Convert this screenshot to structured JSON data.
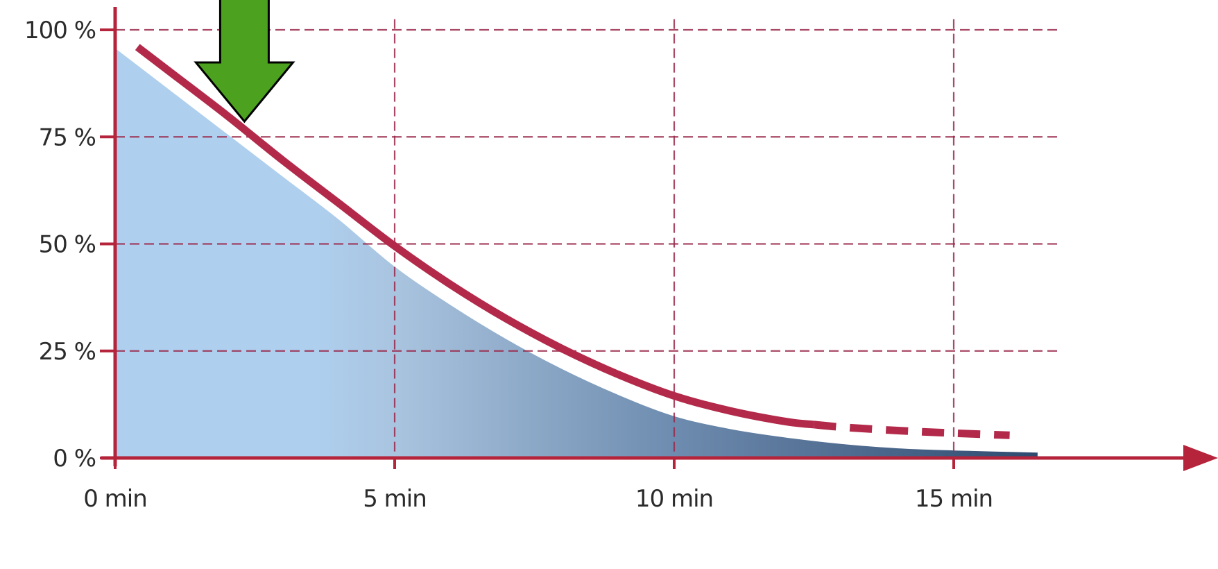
{
  "chart_data": {
    "type": "area",
    "x_unit": "min",
    "y_unit": "%",
    "xlim": [
      0,
      16.5
    ],
    "ylim": [
      0,
      100
    ],
    "x_ticks": [
      0,
      5,
      10,
      15
    ],
    "y_ticks": [
      0,
      25,
      50,
      75,
      100
    ],
    "x_tick_labels": [
      "0 min",
      "5 min",
      "10 min",
      "15 min"
    ],
    "y_tick_labels": [
      "0 %",
      "25 %",
      "50 %",
      "75 %",
      "100 %"
    ],
    "grid": true,
    "series": [
      {
        "style": "filled-area",
        "points": [
          [
            0.0,
            96
          ],
          [
            1.0,
            86
          ],
          [
            2.0,
            76
          ],
          [
            3.0,
            66
          ],
          [
            4.0,
            56
          ],
          [
            5.0,
            45
          ],
          [
            6.0,
            36
          ],
          [
            7.0,
            28
          ],
          [
            8.0,
            21
          ],
          [
            9.0,
            15
          ],
          [
            10.0,
            10
          ],
          [
            11.0,
            7
          ],
          [
            12.0,
            5
          ],
          [
            13.0,
            3.5
          ],
          [
            14.0,
            2.5
          ],
          [
            15.0,
            2
          ],
          [
            16.5,
            1.5
          ]
        ]
      },
      {
        "style": "thick-line",
        "solid_points": [
          [
            0.4,
            96
          ],
          [
            1.0,
            90
          ],
          [
            2.0,
            80
          ],
          [
            3.0,
            69.5
          ],
          [
            4.0,
            59.5
          ],
          [
            5.0,
            49.5
          ],
          [
            6.0,
            40.5
          ],
          [
            7.0,
            32.5
          ],
          [
            8.0,
            25.5
          ],
          [
            9.0,
            19.5
          ],
          [
            10.0,
            14.5
          ],
          [
            11.0,
            11
          ],
          [
            12.0,
            8.5
          ],
          [
            12.5,
            7.8
          ]
        ],
        "dashed_points": [
          [
            12.5,
            7.8
          ],
          [
            13.0,
            7.2
          ],
          [
            14.0,
            6.4
          ],
          [
            15.0,
            5.8
          ],
          [
            16.0,
            5.3
          ]
        ]
      }
    ],
    "annotations": [
      {
        "type": "arrow",
        "direction": "down",
        "x": 2.35,
        "y_from": 110,
        "y_to": 82,
        "color": "#4ca21f"
      }
    ],
    "colors": {
      "axis": "#b5243b",
      "grid": "#9b2a4c",
      "line": "#b3294a",
      "fill_light": "#aecfee",
      "fill_mid": "#a8c3de",
      "fill_dark": "#2f4a6f",
      "arrow_fill": "#4ca21f",
      "arrow_stroke": "#000000",
      "tick_text": "#2b2b2b"
    }
  }
}
